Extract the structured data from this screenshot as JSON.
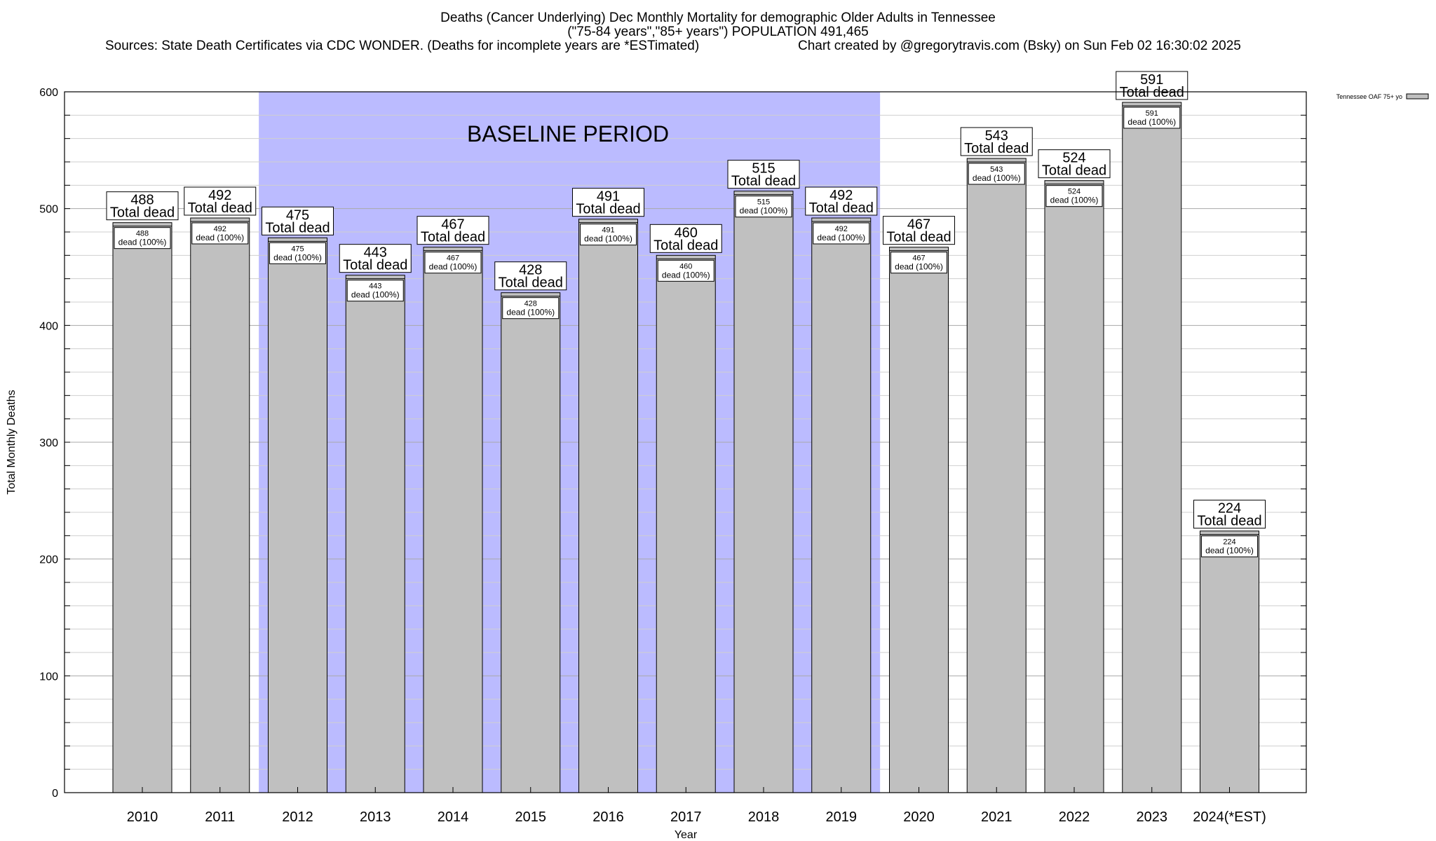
{
  "chart_data": {
    "type": "bar",
    "title_lines": [
      "Deaths (Cancer Underlying) Dec Monthly Mortality for demographic Older Adults in Tennessee",
      "(\"75-84 years\",\"85+ years\") POPULATION 491,465"
    ],
    "sources": "Sources: State Death Certificates via CDC WONDER. (Deaths for incomplete years are *ESTimated)",
    "credit": "Chart created by @gregorytravis.com (Bsky) on Sun Feb 02 16:30:02 2025",
    "xlabel": "Year",
    "ylabel": "Total Monthly Deaths",
    "ylim": [
      0,
      600
    ],
    "yticks": [
      0,
      100,
      200,
      300,
      400,
      500,
      600
    ],
    "minor_grid_step": 20,
    "grid": true,
    "categories": [
      "2010",
      "2011",
      "2012",
      "2013",
      "2014",
      "2015",
      "2016",
      "2017",
      "2018",
      "2019",
      "2020",
      "2021",
      "2022",
      "2023",
      "2024(*EST)"
    ],
    "series": [
      {
        "name": "Tennessee OAF 75+ yo",
        "color": "#c0c0c0",
        "values": [
          488,
          492,
          475,
          443,
          467,
          428,
          491,
          460,
          515,
          492,
          467,
          543,
          524,
          591,
          224
        ]
      }
    ],
    "total_label_suffix": "Total dead",
    "inner_label_suffix": "dead (100%)",
    "baseline": {
      "label": "BASELINE PERIOD",
      "from": "2012",
      "to": "2019",
      "color": "#bbbbff"
    },
    "legend_placement": "top-right"
  }
}
